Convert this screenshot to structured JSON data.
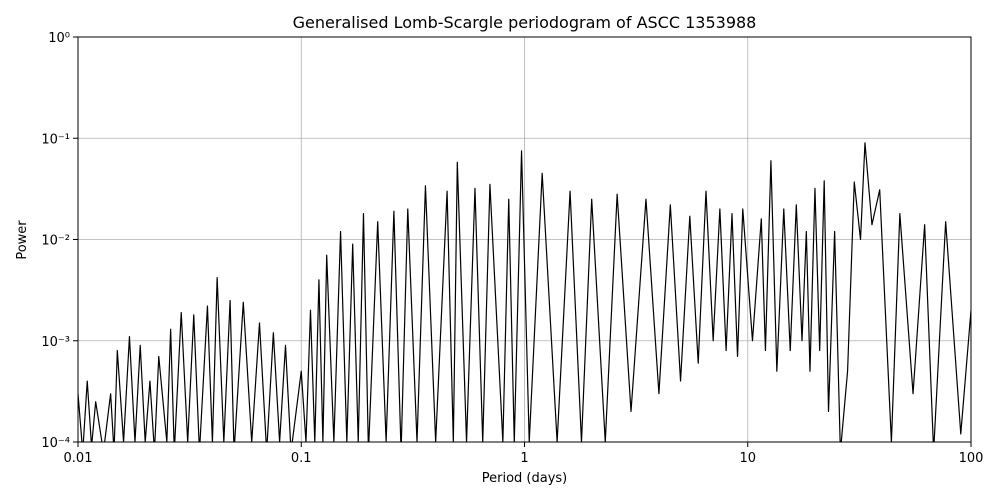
{
  "chart_data": {
    "type": "line",
    "title": "Generalised Lomb-Scargle periodogram of ASCC 1353988",
    "x_label": "Period (days)",
    "y_label": "Power",
    "xscale": "log",
    "yscale": "log",
    "grid": true,
    "xlim": [
      0.01,
      100
    ],
    "ylim": [
      0.0001,
      1
    ],
    "xticks": [
      0.01,
      0.1,
      1,
      10,
      100
    ],
    "yticks": [
      {
        "value": 0.0001,
        "label": "10⁻⁴"
      },
      {
        "value": 0.001,
        "label": "10⁻³"
      },
      {
        "value": 0.01,
        "label": "10⁻²"
      },
      {
        "value": 0.1,
        "label": "10⁻¹"
      },
      {
        "value": 1,
        "label": "10⁰"
      }
    ],
    "x": [
      0.01,
      0.0105,
      0.011,
      0.0115,
      0.012,
      0.013,
      0.014,
      0.0145,
      0.015,
      0.016,
      0.017,
      0.018,
      0.019,
      0.02,
      0.021,
      0.022,
      0.023,
      0.025,
      0.026,
      0.027,
      0.029,
      0.031,
      0.033,
      0.035,
      0.038,
      0.04,
      0.042,
      0.045,
      0.048,
      0.05,
      0.055,
      0.06,
      0.065,
      0.07,
      0.075,
      0.08,
      0.085,
      0.09,
      0.1,
      0.105,
      0.11,
      0.115,
      0.12,
      0.125,
      0.13,
      0.14,
      0.15,
      0.16,
      0.17,
      0.18,
      0.19,
      0.2,
      0.22,
      0.24,
      0.26,
      0.28,
      0.3,
      0.33,
      0.36,
      0.4,
      0.45,
      0.48,
      0.5,
      0.55,
      0.6,
      0.65,
      0.7,
      0.8,
      0.85,
      0.9,
      0.97,
      1.05,
      1.2,
      1.4,
      1.6,
      1.8,
      2,
      2.3,
      2.6,
      3,
      3.5,
      4,
      4.5,
      5,
      5.5,
      6,
      6.5,
      7,
      7.5,
      8,
      8.5,
      9,
      9.5,
      10.5,
      11.5,
      12,
      12.7,
      13.5,
      14.5,
      15.5,
      16.5,
      17.5,
      18.3,
      19,
      20,
      21,
      22,
      23,
      24.5,
      26,
      28,
      30,
      32,
      33.5,
      36,
      39,
      44,
      48,
      55,
      62,
      68,
      77,
      90,
      100
    ],
    "series": [
      {
        "name": "Power",
        "color": "#000000",
        "values": [
          0.0003,
          8e-05,
          0.0004,
          9e-05,
          0.00025,
          8e-05,
          0.0003,
          8e-05,
          0.0008,
          0.0001,
          0.0011,
          0.0001,
          0.0009,
          0.0001,
          0.0004,
          8e-05,
          0.0007,
          0.0001,
          0.0013,
          8e-05,
          0.0019,
          0.0001,
          0.0018,
          8e-05,
          0.0022,
          0.0001,
          0.0042,
          0.0001,
          0.0025,
          8e-05,
          0.0024,
          0.0001,
          0.0015,
          8e-05,
          0.0012,
          0.0001,
          0.0009,
          8e-05,
          0.0005,
          0.0001,
          0.002,
          0.0001,
          0.004,
          0.0001,
          0.007,
          0.0001,
          0.012,
          0.0001,
          0.009,
          0.0001,
          0.018,
          8e-05,
          0.015,
          0.0001,
          0.019,
          8e-05,
          0.02,
          0.0001,
          0.034,
          0.0001,
          0.03,
          0.0001,
          0.058,
          0.0001,
          0.032,
          0.0001,
          0.035,
          0.0001,
          0.025,
          0.0001,
          0.075,
          0.0001,
          0.045,
          0.0001,
          0.03,
          0.0001,
          0.025,
          0.0001,
          0.028,
          0.0002,
          0.025,
          0.0003,
          0.022,
          0.0004,
          0.017,
          0.0006,
          0.03,
          0.001,
          0.02,
          0.0008,
          0.018,
          0.0007,
          0.02,
          0.001,
          0.016,
          0.0008,
          0.06,
          0.0005,
          0.02,
          0.0008,
          0.022,
          0.001,
          0.012,
          0.0005,
          0.032,
          0.0008,
          0.038,
          0.0002,
          0.012,
          8e-05,
          0.0005,
          0.037,
          0.01,
          0.09,
          0.014,
          0.031,
          0.0001,
          0.018,
          0.0003,
          0.014,
          8e-05,
          0.015,
          0.00012,
          0.002
        ]
      }
    ]
  }
}
